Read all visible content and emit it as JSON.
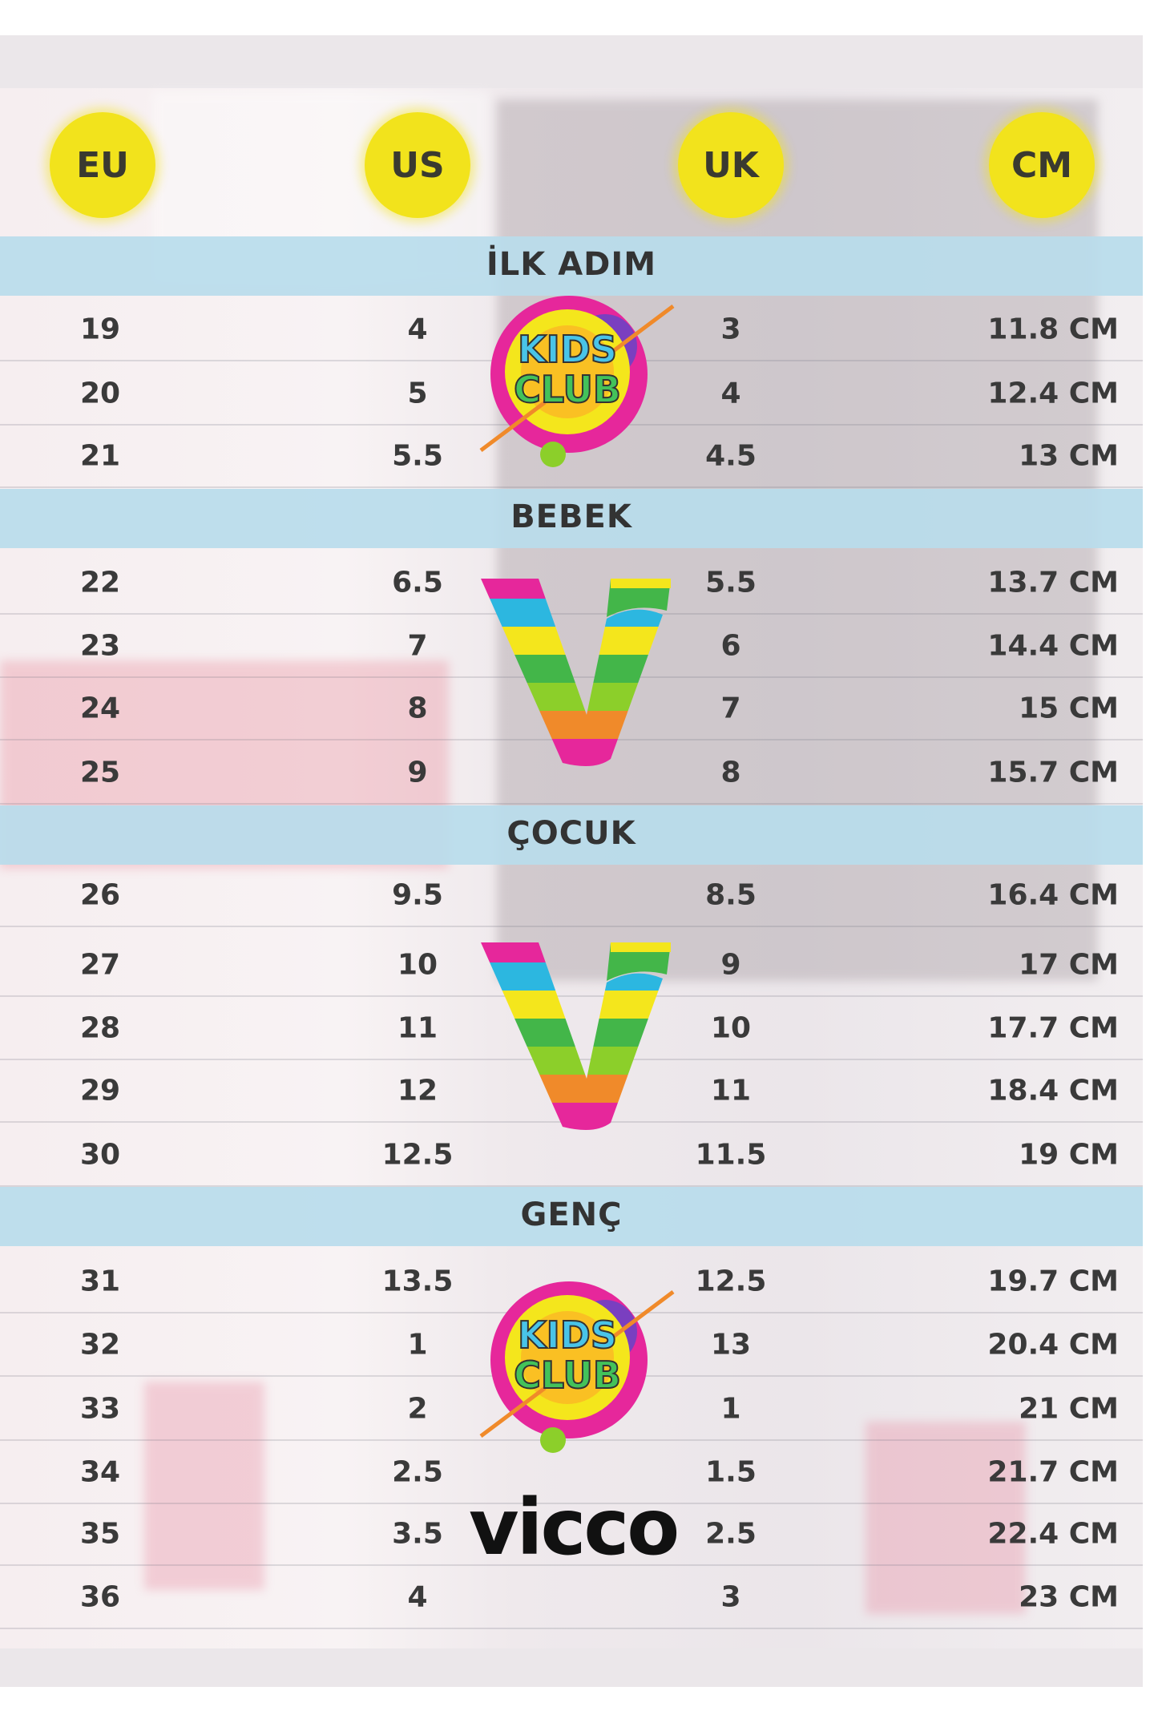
{
  "headers": [
    "EU",
    "US",
    "UK",
    "CM"
  ],
  "colors": {
    "circle": "#f2e31c",
    "band": "#b9dcec",
    "text": "#3a3a3a"
  },
  "sections": [
    {
      "label": "İLK ADIM",
      "rows": [
        [
          "19",
          "4",
          "3",
          "11.8 CM"
        ],
        [
          "20",
          "5",
          "4",
          "12.4 CM"
        ],
        [
          "21",
          "5.5",
          "4.5",
          "13 CM"
        ]
      ]
    },
    {
      "label": "BEBEK",
      "rows": [
        [
          "22",
          "6.5",
          "5.5",
          "13.7 CM"
        ],
        [
          "23",
          "7",
          "6",
          "14.4 CM"
        ],
        [
          "24",
          "8",
          "7",
          "15 CM"
        ],
        [
          "25",
          "9",
          "8",
          "15.7 CM"
        ]
      ]
    },
    {
      "label": "ÇOCUK",
      "rows": [
        [
          "26",
          "9.5",
          "8.5",
          "16.4 CM"
        ],
        [
          "27",
          "10",
          "9",
          "17 CM"
        ],
        [
          "28",
          "11",
          "10",
          "17.7 CM"
        ],
        [
          "29",
          "12",
          "11",
          "18.4 CM"
        ],
        [
          "30",
          "12.5",
          "11.5",
          "19 CM"
        ]
      ]
    },
    {
      "label": "GENÇ",
      "rows": [
        [
          "31",
          "13.5",
          "12.5",
          "19.7 CM"
        ],
        [
          "32",
          "1",
          "13",
          "20.4 CM"
        ],
        [
          "33",
          "2",
          "1",
          "21 CM"
        ],
        [
          "34",
          "2.5",
          "1.5",
          "21.7 CM"
        ],
        [
          "35",
          "3.5",
          "2.5",
          "22.4 CM"
        ],
        [
          "36",
          "4",
          "3",
          "23 CM"
        ]
      ]
    }
  ],
  "logos": {
    "kids_club": "KIDS CLUB",
    "brand": "vicco"
  }
}
